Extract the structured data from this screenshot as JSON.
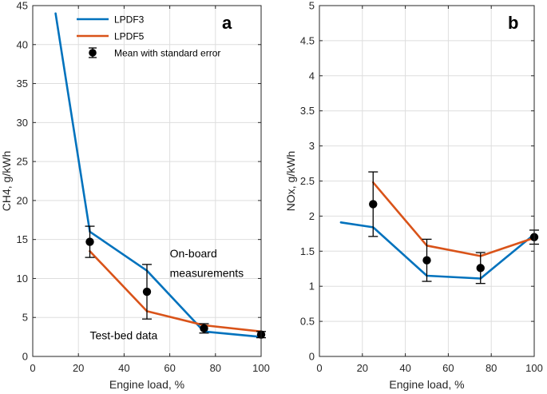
{
  "chart_data": [
    {
      "type": "line",
      "panel": "a",
      "panel_letter": "a",
      "xlabel": "Engine load, %",
      "ylabel": "CH4, g/kWh",
      "xlim": [
        0,
        100
      ],
      "ylim": [
        0,
        45
      ],
      "xticks": [
        0,
        20,
        40,
        60,
        80,
        100
      ],
      "yticks": [
        0,
        5,
        10,
        15,
        20,
        25,
        30,
        35,
        40,
        45
      ],
      "grid": true,
      "legend_position": "top-left",
      "legend": [
        "LPDF3",
        "LPDF5",
        "Mean with standard error"
      ],
      "series": [
        {
          "name": "LPDF3",
          "color": "#0072BD",
          "x": [
            10,
            25,
            50,
            75,
            100
          ],
          "y": [
            44,
            16,
            11,
            3.2,
            2.5
          ]
        },
        {
          "name": "LPDF5",
          "color": "#D95319",
          "x": [
            25,
            50,
            75,
            100
          ],
          "y": [
            13.5,
            5.8,
            4,
            3.2
          ]
        }
      ],
      "points": {
        "name": "Mean with standard error",
        "color": "#000000",
        "x": [
          25,
          50,
          75,
          100
        ],
        "y": [
          14.7,
          8.3,
          3.6,
          2.8
        ],
        "err_low": [
          12.7,
          4.8,
          3.0,
          2.4
        ],
        "err_high": [
          16.7,
          11.8,
          4.2,
          3.2
        ]
      },
      "annotations": [
        {
          "text": "On-board",
          "at": [
            60,
            12.7
          ]
        },
        {
          "text": "measurements",
          "at": [
            60,
            10.2
          ]
        },
        {
          "text": "Test-bed data",
          "at": [
            25,
            2.2
          ]
        }
      ]
    },
    {
      "type": "line",
      "panel": "b",
      "panel_letter": "b",
      "xlabel": "Engine load, %",
      "ylabel": "NOx, g/kWh",
      "xlim": [
        0,
        100
      ],
      "ylim": [
        0,
        5
      ],
      "xticks": [
        0,
        20,
        40,
        60,
        80,
        100
      ],
      "yticks": [
        0,
        0.5,
        1,
        1.5,
        2,
        2.5,
        3,
        3.5,
        4,
        4.5,
        5
      ],
      "grid": true,
      "series": [
        {
          "name": "LPDF3",
          "color": "#0072BD",
          "x": [
            10,
            25,
            50,
            75,
            100
          ],
          "y": [
            1.91,
            1.84,
            1.15,
            1.11,
            1.74
          ]
        },
        {
          "name": "LPDF5",
          "color": "#D95319",
          "x": [
            25,
            50,
            75,
            100
          ],
          "y": [
            2.48,
            1.58,
            1.43,
            1.69
          ]
        }
      ],
      "points": {
        "name": "Mean with standard error",
        "color": "#000000",
        "x": [
          25,
          50,
          75,
          100
        ],
        "y": [
          2.17,
          1.37,
          1.26,
          1.7
        ],
        "err_low": [
          1.71,
          1.07,
          1.04,
          1.6
        ],
        "err_high": [
          2.63,
          1.67,
          1.48,
          1.8
        ]
      }
    }
  ]
}
